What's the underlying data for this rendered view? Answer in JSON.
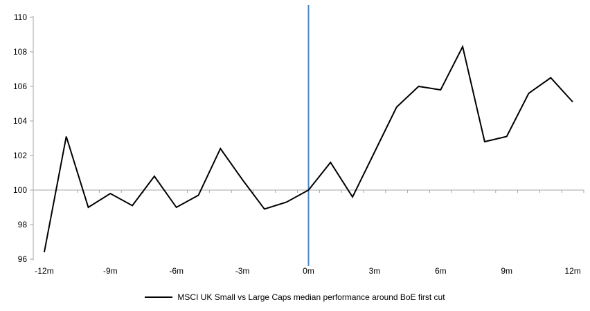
{
  "chart_data": {
    "type": "line",
    "x_months": [
      -12,
      -11,
      -10,
      -9,
      -8,
      -7,
      -6,
      -5,
      -4,
      -3,
      -2,
      -1,
      0,
      1,
      2,
      3,
      4,
      5,
      6,
      7,
      8,
      9,
      10,
      11,
      12
    ],
    "series": [
      {
        "name": "MSCI UK Small vs Large Caps median performance around BoE first cut",
        "color": "#000000",
        "values": [
          96.4,
          103.1,
          99.0,
          99.8,
          99.1,
          100.8,
          99.0,
          99.7,
          102.4,
          100.6,
          98.9,
          99.3,
          100.0,
          101.6,
          99.6,
          102.2,
          104.8,
          106.0,
          105.8,
          108.3,
          102.8,
          103.1,
          105.6,
          106.5,
          105.1
        ]
      }
    ],
    "title": "",
    "xlabel": "",
    "ylabel": "",
    "ylim": [
      96,
      110
    ],
    "yticks": [
      110,
      108,
      106,
      104,
      102,
      100,
      98,
      96
    ],
    "xtick_labels": [
      "-12m",
      "-9m",
      "-6m",
      "-3m",
      "0m",
      "3m",
      "6m",
      "9m",
      "12m"
    ],
    "xtick_every": 3,
    "baseline_value": 100,
    "event_line": {
      "at_month": 0,
      "color": "#4f86c4"
    },
    "grid": false,
    "legend_position": "bottom",
    "axis_color": "#a6a6a6"
  }
}
